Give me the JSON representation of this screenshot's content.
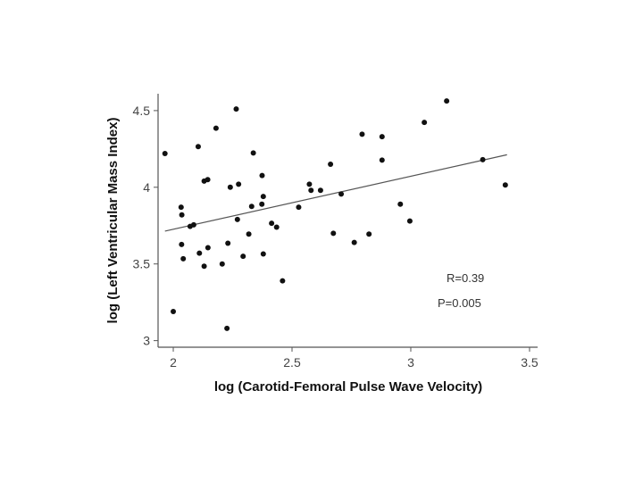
{
  "chart_data": {
    "type": "scatter",
    "title": "",
    "xlabel": "log (Carotid-Femoral Pulse Wave Velocity)",
    "ylabel": "log (Left Ventricular Mass Index)",
    "xlim": [
      1.936,
      3.534
    ],
    "ylim": [
      2.957,
      4.61
    ],
    "xticks": [
      2,
      2.5,
      3,
      3.5
    ],
    "xtick_labels": [
      "2",
      "2.5",
      "3",
      "3.5"
    ],
    "yticks": [
      3,
      3.5,
      4,
      4.5
    ],
    "ytick_labels": [
      "3",
      "3.5",
      "4",
      "4.5"
    ],
    "grid": false,
    "annotations": [
      "R=0.39",
      "P=0.005"
    ],
    "regression_line": {
      "x": [
        1.965,
        3.405
      ],
      "y": [
        3.714,
        4.212
      ]
    },
    "points": [
      [
        1.965,
        4.22
      ],
      [
        2.265,
        4.51
      ],
      [
        2.18,
        4.385
      ],
      [
        2.105,
        4.265
      ],
      [
        2.337,
        4.224
      ],
      [
        2.374,
        4.077
      ],
      [
        2.13,
        4.04
      ],
      [
        2.145,
        4.05
      ],
      [
        2.24,
        4.0
      ],
      [
        2.275,
        4.02
      ],
      [
        2.573,
        4.02
      ],
      [
        2.58,
        3.98
      ],
      [
        2.62,
        3.98
      ],
      [
        2.662,
        4.15
      ],
      [
        2.707,
        3.956
      ],
      [
        2.379,
        3.94
      ],
      [
        2.373,
        3.89
      ],
      [
        2.33,
        3.875
      ],
      [
        2.528,
        3.87
      ],
      [
        2.033,
        3.87
      ],
      [
        2.036,
        3.82
      ],
      [
        2.27,
        3.79
      ],
      [
        2.086,
        3.755
      ],
      [
        2.071,
        3.745
      ],
      [
        2.414,
        3.765
      ],
      [
        2.435,
        3.74
      ],
      [
        2.674,
        3.7
      ],
      [
        2.318,
        3.695
      ],
      [
        2.035,
        3.627
      ],
      [
        2.23,
        3.635
      ],
      [
        2.146,
        3.606
      ],
      [
        2.11,
        3.57
      ],
      [
        2.379,
        3.565
      ],
      [
        2.294,
        3.55
      ],
      [
        2.042,
        3.534
      ],
      [
        2.206,
        3.5
      ],
      [
        2.13,
        3.485
      ],
      [
        2.46,
        3.39
      ],
      [
        2.0,
        3.19
      ],
      [
        2.226,
        3.08
      ],
      [
        3.151,
        4.563
      ],
      [
        3.057,
        4.423
      ],
      [
        2.795,
        4.346
      ],
      [
        2.879,
        4.33
      ],
      [
        2.879,
        4.177
      ],
      [
        3.303,
        4.18
      ],
      [
        3.398,
        4.015
      ],
      [
        2.956,
        3.89
      ],
      [
        2.996,
        3.78
      ],
      [
        2.824,
        3.695
      ],
      [
        2.762,
        3.64
      ]
    ],
    "colors": {
      "points": "#111111",
      "line": "#555555",
      "axis": "#555555"
    }
  }
}
